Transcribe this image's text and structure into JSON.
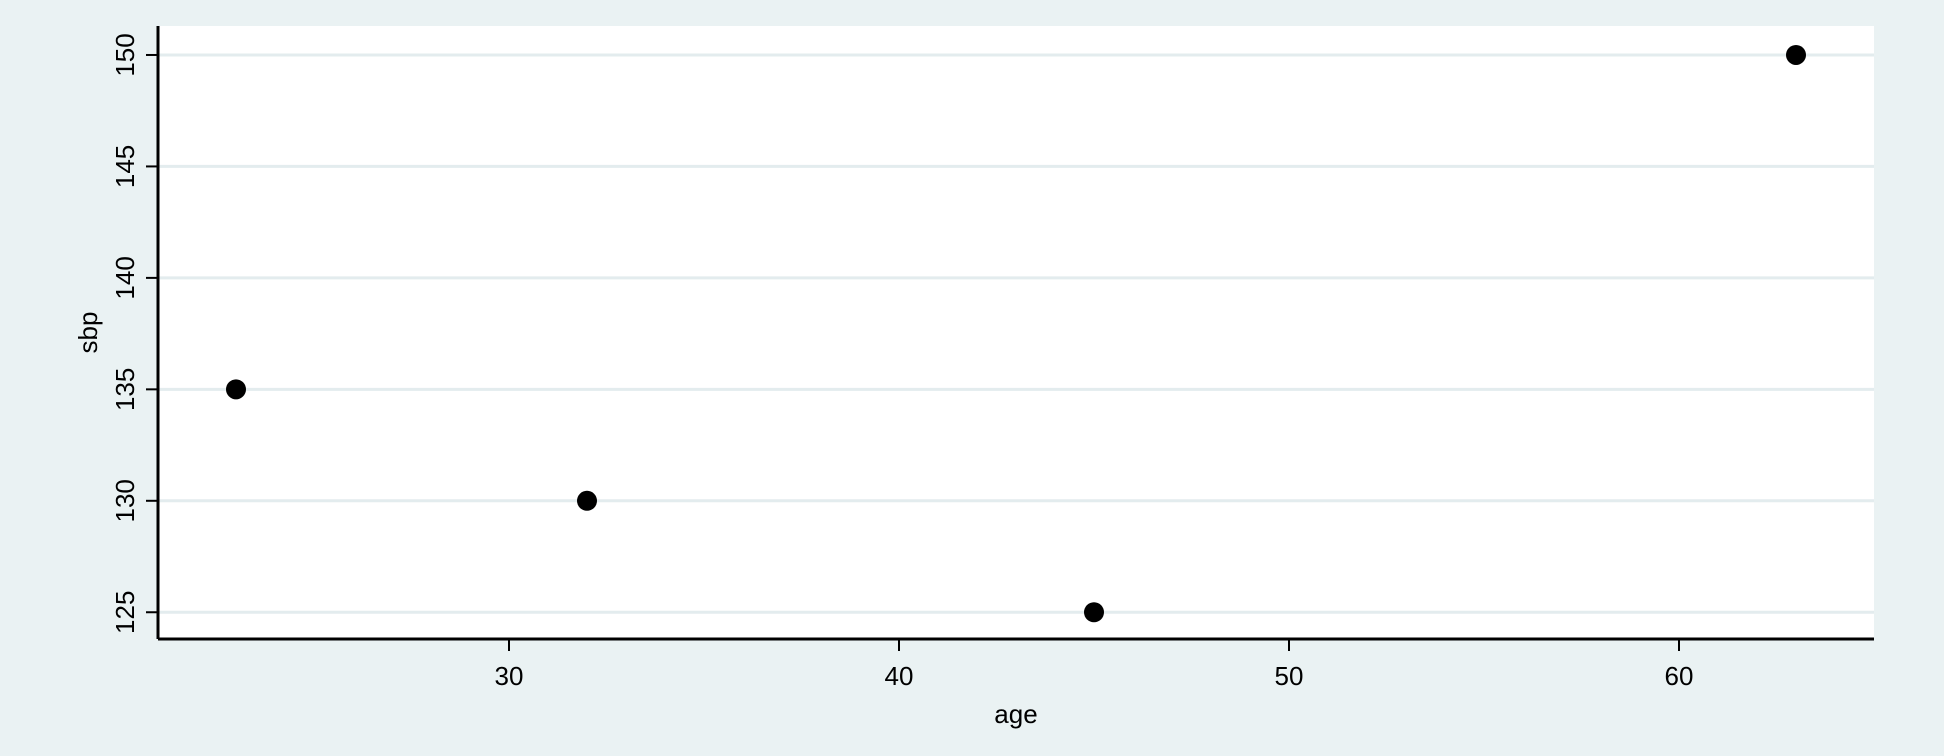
{
  "chart_data": {
    "type": "scatter",
    "xlabel": "age",
    "ylabel": "sbp",
    "xlim": [
      21,
      65
    ],
    "ylim": [
      123.8,
      151.3
    ],
    "xticks": [
      30,
      40,
      50,
      60
    ],
    "yticks": [
      125,
      130,
      135,
      140,
      145,
      150
    ],
    "grid": "horizontal",
    "series": [
      {
        "points": [
          {
            "x": 23,
            "y": 135
          },
          {
            "x": 32,
            "y": 130
          },
          {
            "x": 45,
            "y": 125
          },
          {
            "x": 63,
            "y": 150
          }
        ]
      }
    ],
    "colors": {
      "background": "#eaf2f3",
      "plot_area": "#ffffff",
      "grid": "#e3ecee",
      "marker": "#000000",
      "axis": "#000000"
    }
  }
}
